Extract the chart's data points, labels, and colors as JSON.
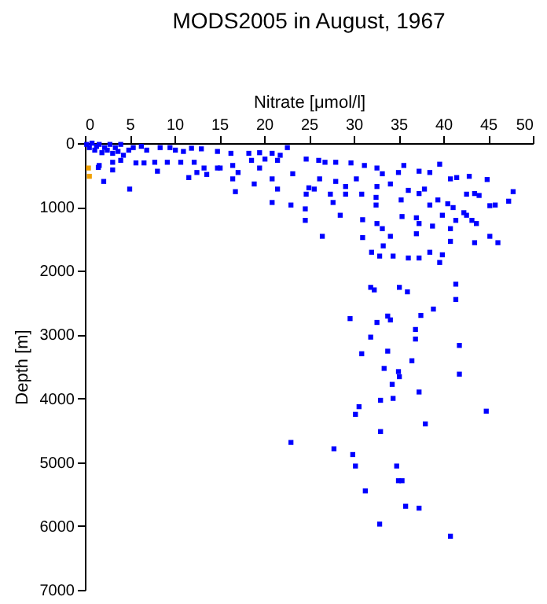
{
  "chart_data": {
    "type": "scatter",
    "title": "MODS2005 in August, 1967",
    "xlabel": "Nitrate [μmol/l]",
    "ylabel": "Depth [m]",
    "xlim": [
      0,
      50
    ],
    "xticks": [
      0,
      5,
      10,
      15,
      20,
      25,
      30,
      35,
      40,
      45,
      50
    ],
    "ylim": [
      7000,
      0
    ],
    "yticks": [
      0,
      1000,
      2000,
      3000,
      4000,
      5000,
      6000,
      7000
    ],
    "grid": false,
    "marker": "square",
    "series": [
      {
        "color": "#0000ff",
        "x": [
          0.2,
          0.5,
          0.8,
          1.1,
          1.3,
          1.6,
          1.9,
          2.2,
          2.5,
          2.8,
          3.1,
          3.4,
          3.7,
          4.0,
          4.3,
          4.9,
          5.4,
          6.3,
          6.9,
          8.4,
          9.5,
          10.1,
          11.0,
          11.9,
          13.0,
          14.8,
          16.3,
          18.3,
          19.5,
          20.9,
          21.8,
          22.6,
          1.6,
          3.1,
          4.0,
          5.7,
          6.6,
          7.8,
          9.2,
          10.7,
          12.2,
          13.3,
          14.8,
          16.5,
          18.6,
          20.1,
          21.5,
          2.1,
          1.5,
          3.1,
          8.1,
          11.6,
          12.5,
          13.6,
          15.1,
          16.5,
          17.1,
          18.9,
          19.5,
          20.9,
          23.2,
          16.8,
          5.0,
          20.9,
          21.5,
          24.7,
          26.1,
          26.8,
          28.0,
          29.7,
          31.2,
          32.6,
          33.2,
          35.0,
          35.6,
          37.3,
          38.5,
          39.6,
          40.8,
          41.5,
          42.9,
          44.9,
          47.8,
          47.3,
          45.8,
          45.2,
          44.0,
          43.5,
          42.6,
          41.1,
          40.5,
          39.4,
          38.5,
          37.9,
          37.3,
          36.1,
          35.3,
          34.1,
          32.6,
          30.3,
          29.1,
          28.0,
          26.2,
          25.0,
          24.7,
          25.6,
          27.4,
          27.7,
          29.1,
          30.9,
          32.5,
          32.5,
          24.6,
          24.6,
          23.0,
          28.5,
          31.0,
          32.6,
          35.4,
          37.0,
          37.3,
          38.8,
          39.9,
          41.4,
          42.6,
          43.2,
          43.7,
          42.3,
          40.8,
          37.0,
          34.1,
          33.2,
          31.0,
          26.5,
          40.8,
          43.5,
          45.2,
          46.1,
          32.0,
          33.3,
          32.9,
          34.4,
          36.1,
          37.3,
          39.6,
          39.9,
          38.5,
          31.9,
          32.3,
          35.1,
          36.0,
          41.4,
          41.4,
          38.9,
          29.6,
          32.6,
          33.8,
          34.1,
          37.5,
          36.9,
          31.9,
          36.9,
          41.8,
          30.9,
          33.8,
          36.5,
          33.4,
          35.0,
          35.1,
          41.8,
          34.3,
          37.3,
          33.0,
          34.4,
          30.6,
          30.2,
          44.8,
          38.0,
          33.0,
          23.0,
          27.8,
          29.9,
          30.2,
          34.8,
          35.0,
          35.4,
          31.3,
          35.8,
          37.3,
          32.9,
          40.8
        ],
        "values": [
          20,
          70,
          0,
          110,
          50,
          20,
          150,
          70,
          110,
          20,
          160,
          70,
          130,
          20,
          190,
          110,
          70,
          50,
          110,
          70,
          70,
          110,
          130,
          80,
          90,
          130,
          160,
          160,
          150,
          160,
          190,
          70,
          350,
          300,
          270,
          310,
          310,
          300,
          300,
          300,
          300,
          390,
          390,
          350,
          270,
          250,
          270,
          600,
          380,
          420,
          440,
          540,
          460,
          490,
          390,
          560,
          460,
          640,
          390,
          560,
          480,
          760,
          720,
          930,
          720,
          250,
          270,
          300,
          300,
          310,
          350,
          390,
          480,
          460,
          350,
          440,
          460,
          330,
          560,
          540,
          520,
          570,
          760,
          910,
          970,
          980,
          820,
          790,
          800,
          1010,
          950,
          890,
          970,
          720,
          790,
          740,
          890,
          640,
          680,
          560,
          680,
          600,
          560,
          700,
          800,
          720,
          800,
          930,
          800,
          800,
          850,
          970,
          1030,
          1210,
          970,
          1130,
          1200,
          1260,
          1150,
          1170,
          1260,
          1300,
          1130,
          1210,
          1130,
          1210,
          1260,
          1090,
          1340,
          1420,
          1460,
          1340,
          1480,
          1460,
          1540,
          1560,
          1460,
          1560,
          1710,
          1610,
          1770,
          1770,
          1800,
          1800,
          1870,
          1750,
          1710,
          2260,
          2300,
          2260,
          2330,
          2210,
          2450,
          2600,
          2750,
          2810,
          2710,
          2770,
          2700,
          2920,
          3040,
          3070,
          3170,
          3300,
          3260,
          3410,
          3530,
          3580,
          3660,
          3620,
          3780,
          3900,
          4030,
          4000,
          4130,
          4250,
          4200,
          4400,
          4520,
          4690,
          4790,
          4880,
          5060,
          5060,
          5290,
          5290,
          5450,
          5690,
          5720,
          5970,
          6160
        ]
      },
      {
        "color": "#f0a000",
        "x": [
          0.4,
          0.5
        ],
        "values": [
          390,
          520
        ]
      }
    ]
  }
}
